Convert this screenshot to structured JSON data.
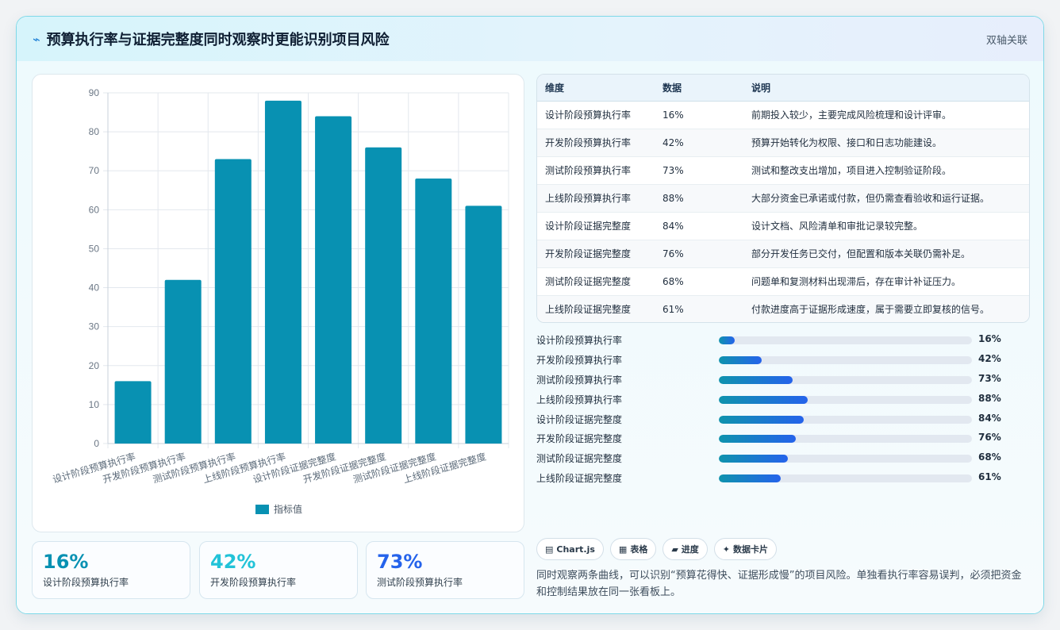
{
  "header": {
    "title": "预算执行率与证据完整度同时观察时更能识别项目风险",
    "tag": "双轴关联"
  },
  "chart_data": {
    "type": "bar",
    "categories": [
      "设计阶段预算执行率",
      "开发阶段预算执行率",
      "测试阶段预算执行率",
      "上线阶段预算执行率",
      "设计阶段证据完整度",
      "开发阶段证据完整度",
      "测试阶段证据完整度",
      "上线阶段证据完整度"
    ],
    "series": [
      {
        "name": "指标值",
        "values": [
          16,
          42,
          73,
          88,
          84,
          76,
          68,
          61
        ]
      }
    ],
    "ylim": [
      0,
      90
    ],
    "yticks": [
      0,
      10,
      20,
      30,
      40,
      50,
      60,
      70,
      80,
      90
    ],
    "grid": true,
    "legend": "bottom",
    "color": "#0891b2"
  },
  "stats": [
    {
      "value": "16%",
      "label": "设计阶段预算执行率",
      "color": "#0891b2"
    },
    {
      "value": "42%",
      "label": "开发阶段预算执行率",
      "color": "#22c3d8"
    },
    {
      "value": "73%",
      "label": "测试阶段预算执行率",
      "color": "#2563eb"
    }
  ],
  "table": {
    "headers": [
      "维度",
      "数据",
      "说明"
    ],
    "rows": [
      [
        "设计阶段预算执行率",
        "16%",
        "前期投入较少，主要完成风险梳理和设计评审。"
      ],
      [
        "开发阶段预算执行率",
        "42%",
        "预算开始转化为权限、接口和日志功能建设。"
      ],
      [
        "测试阶段预算执行率",
        "73%",
        "测试和整改支出增加，项目进入控制验证阶段。"
      ],
      [
        "上线阶段预算执行率",
        "88%",
        "大部分资金已承诺或付款，但仍需查看验收和运行证据。"
      ],
      [
        "设计阶段证据完整度",
        "84%",
        "设计文档、风险清单和审批记录较完整。"
      ],
      [
        "开发阶段证据完整度",
        "76%",
        "部分开发任务已交付，但配置和版本关联仍需补足。"
      ],
      [
        "测试阶段证据完整度",
        "68%",
        "问题单和复测材料出现滞后，存在审计补证压力。"
      ],
      [
        "上线阶段证据完整度",
        "61%",
        "付款进度高于证据形成速度，属于需要立即复核的信号。"
      ]
    ]
  },
  "progress": [
    {
      "label": "设计阶段预算执行率",
      "value": 16,
      "text": "16%"
    },
    {
      "label": "开发阶段预算执行率",
      "value": 42,
      "text": "42%"
    },
    {
      "label": "测试阶段预算执行率",
      "value": 73,
      "text": "73%"
    },
    {
      "label": "上线阶段预算执行率",
      "value": 88,
      "text": "88%"
    },
    {
      "label": "设计阶段证据完整度",
      "value": 84,
      "text": "84%"
    },
    {
      "label": "开发阶段证据完整度",
      "value": 76,
      "text": "76%"
    },
    {
      "label": "测试阶段证据完整度",
      "value": 68,
      "text": "68%"
    },
    {
      "label": "上线阶段证据完整度",
      "value": 61,
      "text": "61%"
    }
  ],
  "chips": [
    {
      "icon": "▤",
      "label": "Chart.js"
    },
    {
      "icon": "▦",
      "label": "表格"
    },
    {
      "icon": "▰",
      "label": "进度"
    },
    {
      "icon": "✦",
      "label": "数据卡片"
    }
  ],
  "note": "同时观察两条曲线，可以识别“预算花得快、证据形成慢”的项目风险。单独看执行率容易误判，必须把资金和控制结果放在同一张看板上。"
}
